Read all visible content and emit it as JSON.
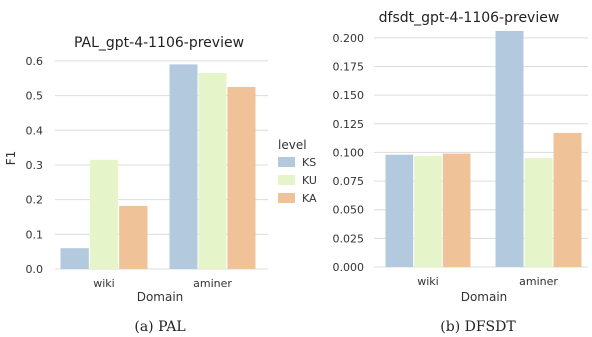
{
  "chart_data": [
    {
      "type": "bar",
      "title": "PAL_gpt-4-1106-preview",
      "xlabel": "Domain",
      "ylabel": "F1",
      "categories": [
        "wiki",
        "aminer"
      ],
      "ylim": [
        0,
        0.62
      ],
      "yticks": [
        0.0,
        0.1,
        0.2,
        0.3,
        0.4,
        0.5,
        0.6
      ],
      "ytick_labels": [
        "0.0",
        "0.1",
        "0.2",
        "0.3",
        "0.4",
        "0.5",
        "0.6"
      ],
      "grid": "horizontal",
      "series": [
        {
          "name": "KS",
          "values": [
            0.06,
            0.59
          ]
        },
        {
          "name": "KU",
          "values": [
            0.315,
            0.565
          ]
        },
        {
          "name": "KA",
          "values": [
            0.182,
            0.525
          ]
        }
      ],
      "caption": "(a)  PAL"
    },
    {
      "type": "bar",
      "title": "dfsdt_gpt-4-1106-preview",
      "xlabel": "Domain",
      "ylabel": "",
      "categories": [
        "wiki",
        "aminer"
      ],
      "ylim": [
        0,
        0.206
      ],
      "yticks": [
        0.0,
        0.025,
        0.05,
        0.075,
        0.1,
        0.125,
        0.15,
        0.175,
        0.2
      ],
      "ytick_labels": [
        "0.000",
        "0.025",
        "0.050",
        "0.075",
        "0.100",
        "0.125",
        "0.150",
        "0.175",
        "0.200"
      ],
      "grid": "horizontal",
      "series": [
        {
          "name": "KS",
          "values": [
            0.098,
            0.206
          ]
        },
        {
          "name": "KU",
          "values": [
            0.097,
            0.095
          ]
        },
        {
          "name": "KA",
          "values": [
            0.099,
            0.117
          ]
        }
      ],
      "caption": "(b)  DFSDT"
    }
  ],
  "legend": {
    "title": "level",
    "items": [
      "KS",
      "KU",
      "KA"
    ],
    "placement": "between-charts-right-of-first"
  },
  "colors": {
    "KS": "#b3c9dd",
    "KU": "#e5f5c9",
    "KA": "#f0c298"
  }
}
